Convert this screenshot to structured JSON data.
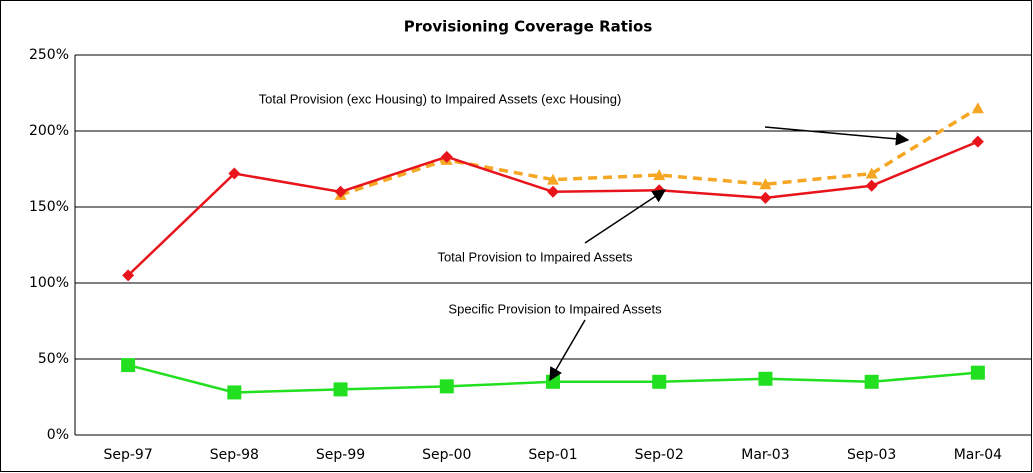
{
  "chart_data": {
    "type": "line",
    "title": "Provisioning Coverage Ratios",
    "categories": [
      "Sep-97",
      "Sep-98",
      "Sep-99",
      "Sep-00",
      "Sep-01",
      "Sep-02",
      "Mar-03",
      "Sep-03",
      "Mar-04"
    ],
    "series": [
      {
        "name": "Total Provision (exc Housing) to Impaired Assets (exc Housing)",
        "color": "#f5a623",
        "marker": "triangle",
        "dashed": true,
        "values": [
          null,
          null,
          158,
          181,
          168,
          171,
          165,
          172,
          215
        ]
      },
      {
        "name": "Total Provision to Impaired Assets",
        "color": "#e8141b",
        "marker": "diamond",
        "dashed": false,
        "values": [
          105,
          172,
          160,
          183,
          160,
          161,
          156,
          164,
          193
        ]
      },
      {
        "name": "Specific Provision to Impaired Assets",
        "color": "#22e01f",
        "marker": "square",
        "dashed": false,
        "values": [
          46,
          28,
          30,
          32,
          35,
          35,
          37,
          35,
          41
        ]
      }
    ],
    "ylim": [
      0,
      250
    ],
    "yticks": [
      {
        "value": 0,
        "label": "0%"
      },
      {
        "value": 50,
        "label": "50%"
      },
      {
        "value": 100,
        "label": "100%"
      },
      {
        "value": 150,
        "label": "150%"
      },
      {
        "value": 200,
        "label": "200%"
      },
      {
        "value": 250,
        "label": "250%"
      }
    ],
    "grid": true
  }
}
